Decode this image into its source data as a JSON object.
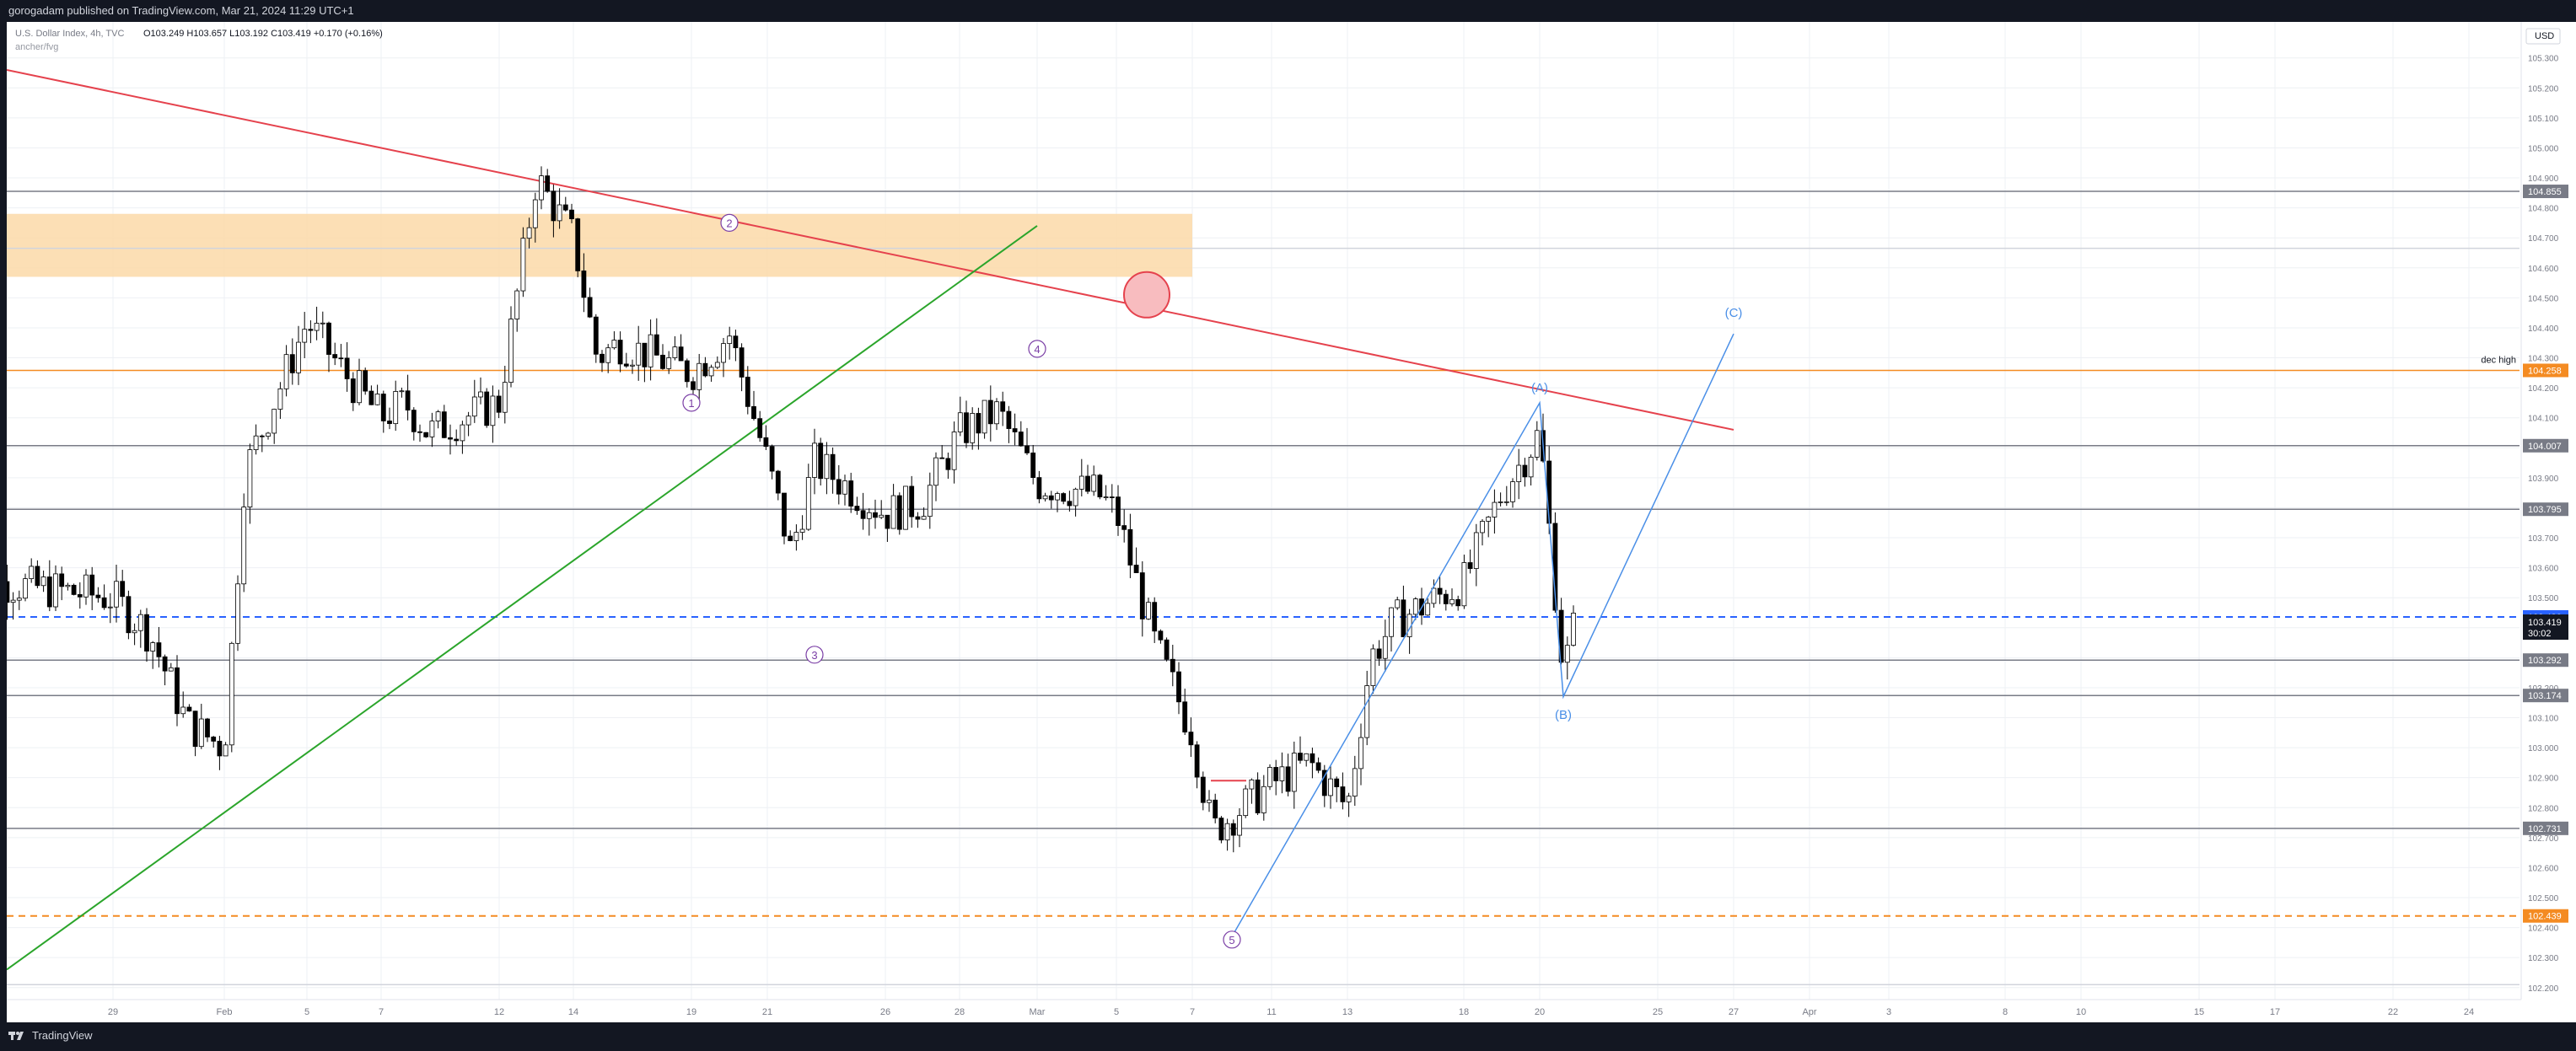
{
  "header": {
    "publisher_line": "gorogadam published on TradingView.com, Mar 21, 2024 11:29 UTC+1"
  },
  "legend": {
    "symbol": "U.S. Dollar Index, 4h, TVC",
    "ohlc": "O103.249  H103.657  L103.192  C103.419  +0.170 (+0.16%)",
    "indicator": "ancher/fvg"
  },
  "footer": {
    "brand": "TradingView"
  },
  "colors": {
    "background": "#ffffff",
    "grid": "#eef0f4",
    "up": "#ffffff",
    "down": "#000000",
    "trendline_red": "#e5424d",
    "trendline_green": "#2ba52b",
    "wave_blue": "#4a8fe7",
    "zone_orange": "#fcd9a8",
    "dec_high": "#f48b22",
    "current_price_blue": "#2962ff",
    "wave_label": "#7b3fa6"
  },
  "chart_data": {
    "type": "candlestick",
    "symbol": "DXY",
    "timeframe": "4h",
    "ylim": [
      102.16,
      105.42
    ],
    "currency_label": "USD",
    "y_ticks": [
      102.2,
      102.3,
      102.4,
      102.5,
      102.6,
      102.7,
      102.8,
      102.9,
      103.0,
      103.1,
      103.2,
      103.3,
      103.4,
      103.5,
      103.6,
      103.7,
      103.8,
      103.9,
      104.0,
      104.1,
      104.2,
      104.3,
      104.4,
      104.5,
      104.6,
      104.7,
      104.8,
      104.9,
      105.0,
      105.1,
      105.2,
      105.3
    ],
    "y_tick_labels": [
      "102.200",
      "102.300",
      "102.400",
      "102.500",
      "102.600",
      "102.700",
      "102.800",
      "102.900",
      "103.000",
      "103.100",
      "103.200",
      "103.300",
      "103.400",
      "103.500",
      "103.600",
      "103.700",
      "103.800",
      "103.900",
      "104.000",
      "104.100",
      "104.200",
      "104.300",
      "104.400",
      "104.500",
      "104.600",
      "104.700",
      "104.800",
      "104.900",
      "105.000",
      "105.100",
      "105.200",
      "105.300"
    ],
    "x_ticks": [
      {
        "label": "29",
        "date": "2024-01-29"
      },
      {
        "label": "Feb",
        "date": "2024-02-01"
      },
      {
        "label": "5",
        "date": "2024-02-05"
      },
      {
        "label": "7",
        "date": "2024-02-07"
      },
      {
        "label": "12",
        "date": "2024-02-12"
      },
      {
        "label": "14",
        "date": "2024-02-14"
      },
      {
        "label": "19",
        "date": "2024-02-19"
      },
      {
        "label": "21",
        "date": "2024-02-21"
      },
      {
        "label": "26",
        "date": "2024-02-26"
      },
      {
        "label": "28",
        "date": "2024-02-28"
      },
      {
        "label": "Mar",
        "date": "2024-03-01"
      },
      {
        "label": "5",
        "date": "2024-03-05"
      },
      {
        "label": "7",
        "date": "2024-03-07"
      },
      {
        "label": "11",
        "date": "2024-03-11"
      },
      {
        "label": "13",
        "date": "2024-03-13"
      },
      {
        "label": "18",
        "date": "2024-03-18"
      },
      {
        "label": "20",
        "date": "2024-03-20"
      },
      {
        "label": "25",
        "date": "2024-03-25"
      },
      {
        "label": "27",
        "date": "2024-03-27"
      },
      {
        "label": "Apr",
        "date": "2024-04-01"
      },
      {
        "label": "3",
        "date": "2024-04-03"
      },
      {
        "label": "8",
        "date": "2024-04-08"
      },
      {
        "label": "10",
        "date": "2024-04-10"
      },
      {
        "label": "15",
        "date": "2024-04-15"
      },
      {
        "label": "17",
        "date": "2024-04-17"
      },
      {
        "label": "22",
        "date": "2024-04-22"
      },
      {
        "label": "24",
        "date": "2024-04-24"
      }
    ],
    "price_path": [
      [
        "2024-01-25",
        103.3
      ],
      [
        "2024-01-26",
        103.55
      ],
      [
        "2024-01-29",
        103.5
      ],
      [
        "2024-01-30",
        103.38
      ],
      [
        "2024-01-31",
        103.08
      ],
      [
        "2024-02-01",
        103.0
      ],
      [
        "2024-02-02",
        103.92
      ],
      [
        "2024-02-05",
        104.42
      ],
      [
        "2024-02-06",
        104.25
      ],
      [
        "2024-02-07",
        104.1
      ],
      [
        "2024-02-08",
        104.15
      ],
      [
        "2024-02-09",
        104.05
      ],
      [
        "2024-02-12",
        104.15
      ],
      [
        "2024-02-13",
        104.9
      ],
      [
        "2024-02-14",
        104.7
      ],
      [
        "2024-02-15",
        104.3
      ],
      [
        "2024-02-16",
        104.35
      ],
      [
        "2024-02-19",
        104.25
      ],
      [
        "2024-02-20",
        104.38
      ],
      [
        "2024-02-21",
        103.95
      ],
      [
        "2024-02-22",
        103.65
      ],
      [
        "2024-02-23",
        103.95
      ],
      [
        "2024-02-26",
        103.78
      ],
      [
        "2024-02-27",
        103.82
      ],
      [
        "2024-02-28",
        104.05
      ],
      [
        "2024-02-29",
        104.12
      ],
      [
        "2024-03-01",
        103.88
      ],
      [
        "2024-03-04",
        103.85
      ],
      [
        "2024-03-05",
        103.78
      ],
      [
        "2024-03-06",
        103.35
      ],
      [
        "2024-03-07",
        103.05
      ],
      [
        "2024-03-08",
        102.72
      ],
      [
        "2024-03-11",
        102.88
      ],
      [
        "2024-03-12",
        102.95
      ],
      [
        "2024-03-13",
        102.8
      ],
      [
        "2024-03-14",
        103.3
      ],
      [
        "2024-03-15",
        103.42
      ],
      [
        "2024-03-18",
        103.55
      ],
      [
        "2024-03-19",
        103.85
      ],
      [
        "2024-03-20",
        104.05
      ],
      [
        "2024-03-21",
        103.25
      ],
      [
        "2024-03-21T12",
        103.42
      ]
    ],
    "horizontal_levels": [
      {
        "price": 104.855,
        "label": "104.855",
        "style": "solid",
        "color": "#787b86"
      },
      {
        "price": 104.665,
        "label": "",
        "style": "solid",
        "color": "#d1d4dc"
      },
      {
        "price": 104.258,
        "label": "104.258",
        "style": "solid",
        "color": "#f48b22",
        "note": "dec high"
      },
      {
        "price": 104.007,
        "label": "104.007",
        "style": "solid",
        "color": "#787b86"
      },
      {
        "price": 103.795,
        "label": "103.795",
        "style": "solid",
        "color": "#787b86"
      },
      {
        "price": 103.436,
        "label": "103.436",
        "style": "dashed",
        "color": "#2962ff"
      },
      {
        "price": 103.292,
        "label": "103.292",
        "style": "solid",
        "color": "#787b86"
      },
      {
        "price": 103.174,
        "label": "103.174",
        "style": "solid",
        "color": "#787b86"
      },
      {
        "price": 102.731,
        "label": "102.731",
        "style": "solid",
        "color": "#787b86"
      },
      {
        "price": 102.439,
        "label": "102.439",
        "style": "dashed",
        "color": "#f48b22"
      },
      {
        "price": 102.21,
        "label": "",
        "style": "solid",
        "color": "#d1d4dc"
      }
    ],
    "last_price": {
      "price": 103.419,
      "label": "103.419",
      "countdown": "30:02"
    },
    "zone": {
      "price_top": 104.78,
      "price_bottom": 104.57,
      "date_start": "2024-01-24",
      "date_end": "2024-03-07"
    },
    "trendlines": [
      {
        "name": "red",
        "from": [
          "2024-01-24",
          105.26
        ],
        "to": [
          "2024-03-27",
          104.06
        ]
      },
      {
        "name": "green",
        "from": [
          "2024-01-24",
          102.26
        ],
        "to": [
          "2024-03-01",
          104.74
        ]
      }
    ],
    "wave_counts": [
      {
        "label": "1",
        "date": "2024-02-19",
        "price": 104.15,
        "style": "circle"
      },
      {
        "label": "2",
        "date": "2024-02-20",
        "price": 104.75,
        "style": "circle"
      },
      {
        "label": "3",
        "date": "2024-02-23",
        "price": 103.31,
        "style": "circle"
      },
      {
        "label": "4",
        "date": "2024-03-01",
        "price": 104.33,
        "style": "circle"
      },
      {
        "label": "5",
        "date": "2024-03-09",
        "price": 102.36,
        "style": "circle"
      },
      {
        "label": "(A)",
        "date": "2024-03-20",
        "price": 104.2,
        "style": "paren"
      },
      {
        "label": "(B)",
        "date": "2024-03-21",
        "price": 103.11,
        "style": "paren"
      },
      {
        "label": "(C)",
        "date": "2024-03-27",
        "price": 104.45,
        "style": "paren"
      }
    ],
    "projection_path": [
      [
        "2024-03-09",
        102.37
      ],
      [
        "2024-03-20",
        104.15
      ],
      [
        "2024-03-21",
        103.17
      ],
      [
        "2024-03-27",
        104.38
      ]
    ],
    "dec_high_text": "dec high"
  }
}
